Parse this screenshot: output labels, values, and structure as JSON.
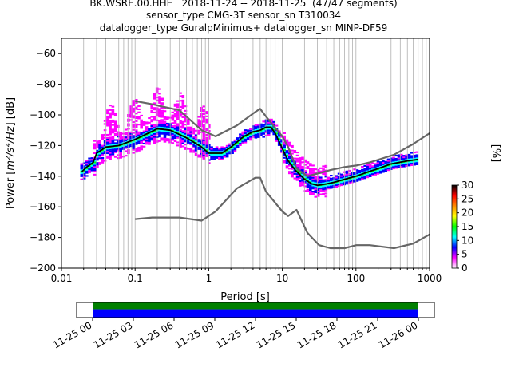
{
  "title_lines": [
    "BK.WSRE.00.HHE   2018-11-24 -- 2018-11-25  (47/47 segments)",
    "sensor_type CMG-3T sensor_sn T310034",
    "datalogger_type GuralpMinimus+ datalogger_sn MINP-DF59"
  ],
  "chart_data": [
    {
      "type": "heatmap",
      "xlabel": "Period [s]",
      "ylabel_prefix": "Power [",
      "ylabel_units": "m²/s⁴/Hz",
      "ylabel_suffix": "] [dB]",
      "xscale": "log",
      "xlim": [
        0.01,
        1000
      ],
      "ylim": [
        -200,
        -50
      ],
      "xticks": [
        0.01,
        0.1,
        1,
        10,
        100,
        1000
      ],
      "xtick_labels": [
        "0.01",
        "0.1",
        "1",
        "10",
        "100",
        "1000"
      ],
      "yticks": [
        -200,
        -180,
        -160,
        -140,
        -120,
        -100,
        -80,
        -60
      ],
      "ytick_labels": [
        "−200",
        "−180",
        "−160",
        "−140",
        "−120",
        "−100",
        "−80",
        "−60"
      ],
      "grid": "vertical log gridlines",
      "colorbar": {
        "label": "[%]",
        "range": [
          0,
          30
        ],
        "ticks": [
          0,
          5,
          10,
          15,
          20,
          25,
          30
        ],
        "tick_labels": [
          "0",
          "5",
          "10",
          "15",
          "20",
          "25",
          "30"
        ],
        "colors": [
          "#ffffff",
          "#ff00ff",
          "#0000ff",
          "#00ffff",
          "#00ff00",
          "#ffff00",
          "#ff8800",
          "#ff0000",
          "#000000"
        ]
      },
      "series": [
        {
          "role": "mode",
          "color": "#000000",
          "x": [
            0.019,
            0.022,
            0.027,
            0.03,
            0.04,
            0.06,
            0.1,
            0.15,
            0.2,
            0.3,
            0.5,
            0.8,
            1,
            1.5,
            2,
            3,
            4,
            5,
            6,
            7,
            8,
            10,
            12,
            15,
            20,
            25,
            30,
            40,
            50,
            70,
            100,
            150,
            200,
            300,
            500,
            700
          ],
          "y": [
            -137,
            -134,
            -131,
            -125,
            -121,
            -120,
            -116,
            -112,
            -109,
            -110,
            -115,
            -121,
            -125,
            -125,
            -121,
            -114,
            -111,
            -110,
            -108,
            -108,
            -112,
            -122,
            -130,
            -136,
            -142,
            -145,
            -146,
            -145,
            -144,
            -142,
            -140,
            -137,
            -135,
            -132,
            -130,
            -129
          ]
        },
        {
          "role": "NHNM",
          "color": "#666666",
          "x": [
            0.1,
            0.17,
            0.4,
            0.8,
            1.24,
            2.4,
            4.3,
            5,
            6,
            10,
            12,
            15.6,
            21.9,
            31.6,
            45,
            70,
            101,
            154,
            328,
            600,
            1000
          ],
          "y": [
            -91,
            -93,
            -97,
            -110,
            -114,
            -107,
            -98,
            -96,
            -101,
            -114,
            -121,
            -135,
            -140,
            -138,
            -136,
            -134,
            -133,
            -131,
            -126,
            -119,
            -112
          ]
        },
        {
          "role": "NLNM",
          "color": "#666666",
          "x": [
            0.1,
            0.17,
            0.4,
            0.8,
            1.24,
            2.4,
            4.3,
            5,
            6,
            10,
            12,
            15.6,
            21.9,
            31.6,
            45,
            70,
            101,
            154,
            328,
            600,
            1000
          ],
          "y": [
            -168,
            -167,
            -167,
            -169,
            -163,
            -148,
            -141,
            -141,
            -150,
            -163,
            -166,
            -162,
            -177,
            -185,
            -187,
            -187,
            -185,
            -185,
            -187,
            -184,
            -178
          ]
        }
      ]
    },
    {
      "type": "bar",
      "description_role": "data coverage timeline",
      "tick_labels": [
        "11-25 00",
        "11-25 03",
        "11-25 06",
        "11-25 09",
        "11-25 12",
        "11-25 15",
        "11-25 18",
        "11-25 21",
        "11-26 00"
      ],
      "bands": [
        {
          "role": "data",
          "color": "#008000"
        },
        {
          "role": "used segments",
          "color": "#0000ff"
        }
      ]
    }
  ]
}
